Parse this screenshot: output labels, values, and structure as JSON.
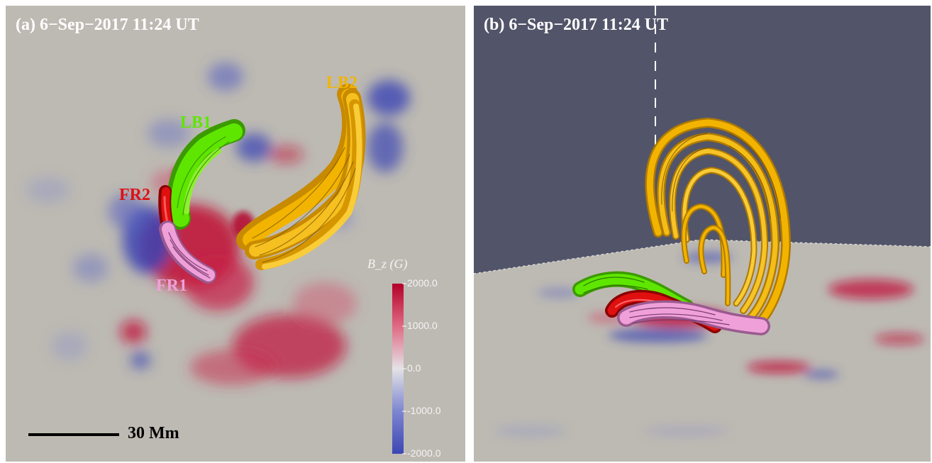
{
  "panel_a": {
    "title": "(a) 6−Sep−2017 11:24 UT",
    "labels": {
      "lb1": "LB1",
      "lb2": "LB2",
      "fr1": "FR1",
      "fr2": "FR2"
    },
    "colorbar": {
      "title": "B_z (G)",
      "ticks": [
        "2000.0",
        "1000.0",
        "0.0",
        "-1000.0",
        "-2000.0"
      ]
    },
    "scale_bar": "30 Mm"
  },
  "panel_b": {
    "title": "(b) 6−Sep−2017 11:24 UT"
  },
  "colors": {
    "lb1": "#5ee600",
    "lb2": "#f2b400",
    "fr1": "#f0a0d8",
    "fr2": "#e01010",
    "positive_field": "#c0143c",
    "negative_field": "#3c46b4",
    "background_a": "#bdbab3",
    "background_b": "#525569"
  }
}
